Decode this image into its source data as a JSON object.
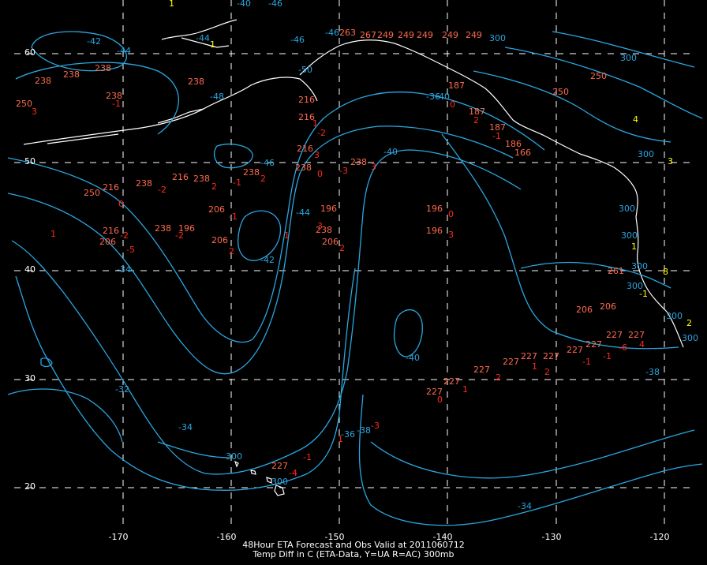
{
  "caption": {
    "line1": "48Hour ETA Forecast and Obs Valid at 2011060712",
    "line2": "Temp Diff in C (ETA-Data, Y=UA R=AC) 300mb"
  },
  "axes": {
    "lon_ticks": [
      "-170",
      "-160",
      "-150",
      "-140",
      "-130",
      "-120"
    ],
    "lat_ticks": [
      "60",
      "50",
      "40",
      "30",
      "20"
    ]
  },
  "colors": {
    "background": "#000000",
    "contour": "#2aa6e0",
    "coast": "#ffffff",
    "grid": "#ffffff",
    "obs_id": "#ff6a4d",
    "obs_diff": "#ff2a1a",
    "ua_diff": "#ffff00"
  },
  "contour_labels": [
    "-46",
    "-46",
    "-44",
    "-42",
    "-40",
    "-40",
    "-42",
    "-44",
    "-46",
    "-38",
    "-36",
    "-34",
    "-34",
    "-34",
    "-32",
    "-38",
    "-36",
    "-40",
    "-40",
    "-44",
    "-46",
    "-50",
    "-48",
    "300",
    "300",
    "300",
    "300",
    "300",
    "300",
    "300",
    "300",
    "300",
    "300",
    "300"
  ],
  "obs_ids": [
    "227",
    "227",
    "227",
    "227",
    "227",
    "227",
    "227",
    "227",
    "227",
    "227",
    "227",
    "238",
    "238",
    "238",
    "238",
    "238",
    "238",
    "238",
    "238",
    "238",
    "238",
    "238",
    "238",
    "250",
    "250",
    "250",
    "216",
    "216",
    "216",
    "216",
    "216",
    "216",
    "206",
    "206",
    "206",
    "206",
    "206",
    "206",
    "196",
    "196",
    "196",
    "196",
    "187",
    "187",
    "187",
    "186",
    "166",
    "261",
    "263",
    "267",
    "249",
    "249",
    "249",
    "249",
    "249",
    "250"
  ],
  "obs_diffs": [
    "1",
    "2",
    "-1",
    "2",
    "0",
    "-3",
    "3",
    "-2",
    "-1",
    "-2",
    "1",
    "2",
    "0",
    "3",
    "1",
    "0",
    "2",
    "-3",
    "1",
    "-1",
    "-4",
    "3",
    "-1",
    "1",
    "-2",
    "3",
    "2",
    "-5",
    "-2",
    "-6",
    "4",
    "-1",
    "-1",
    "1",
    "2",
    "0",
    "3",
    "0",
    "2",
    "-1"
  ],
  "ua_diffs": [
    "1",
    "1",
    "4",
    "3",
    "1",
    "2",
    "-1",
    "8"
  ]
}
